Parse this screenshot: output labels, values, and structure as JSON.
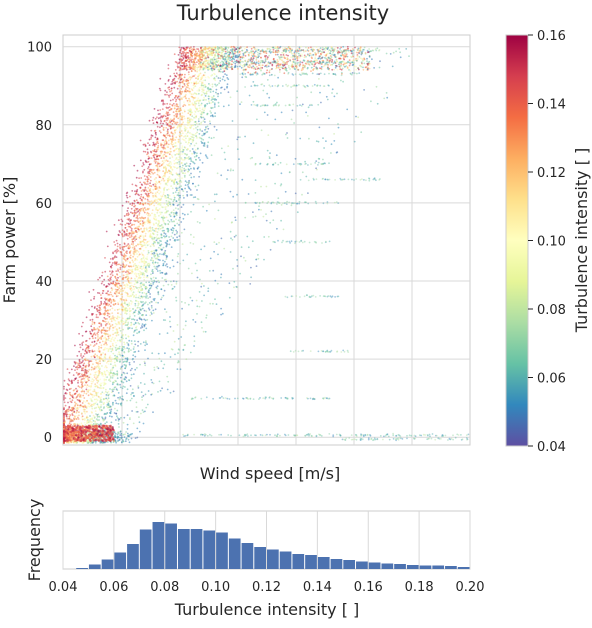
{
  "chart_data": [
    {
      "type": "scatter",
      "title": "Turbulence intensity",
      "xlabel": "Wind speed [m/s]",
      "ylabel": "Farm power [%]",
      "ylim": [
        -2,
        103
      ],
      "y_ticks": [
        0,
        20,
        40,
        60,
        80,
        100
      ],
      "x_tick_labels_shown": false,
      "grid": true,
      "color_by": "Turbulence intensity [ ]",
      "colormap": "Spectral_r",
      "colormap_stops": [
        "#5e4fa2",
        "#3288bd",
        "#66c2a5",
        "#abdda4",
        "#e6f598",
        "#ffffbf",
        "#fee08b",
        "#fdae61",
        "#f46d43",
        "#d53e4f",
        "#9e0142"
      ],
      "colorbar": {
        "label": "Turbulence intensity [ ]",
        "range": [
          0.04,
          0.16
        ],
        "ticks": [
          "0.04",
          "0.06",
          "0.08",
          "0.10",
          "0.12",
          "0.14",
          "0.16"
        ]
      },
      "power_curve_description": "power rises from ~0% near the lower wind speeds to 100% rated; high-TI points lie to the left of the curve, low-TI points to the right"
    },
    {
      "type": "bar",
      "xlabel": "Turbulence intensity [ ]",
      "ylabel": "Frequency",
      "xlim": [
        0.04,
        0.2
      ],
      "x_ticks": [
        "0.04",
        "0.06",
        "0.08",
        "0.10",
        "0.12",
        "0.14",
        "0.16",
        "0.18",
        "0.20"
      ],
      "bin_width": 0.005,
      "bin_starts": [
        0.045,
        0.05,
        0.055,
        0.06,
        0.065,
        0.07,
        0.075,
        0.08,
        0.085,
        0.09,
        0.095,
        0.1,
        0.105,
        0.11,
        0.115,
        0.12,
        0.125,
        0.13,
        0.135,
        0.14,
        0.145,
        0.15,
        0.155,
        0.16,
        0.165,
        0.17,
        0.175,
        0.18,
        0.185,
        0.19,
        0.195
      ],
      "relative_frequency": [
        0.02,
        0.09,
        0.19,
        0.33,
        0.5,
        0.79,
        0.94,
        0.91,
        0.8,
        0.8,
        0.77,
        0.73,
        0.61,
        0.52,
        0.44,
        0.39,
        0.35,
        0.3,
        0.28,
        0.24,
        0.2,
        0.18,
        0.15,
        0.13,
        0.11,
        0.1,
        0.08,
        0.07,
        0.07,
        0.06,
        0.04
      ],
      "color": "#4c72b0",
      "grid": true
    }
  ]
}
